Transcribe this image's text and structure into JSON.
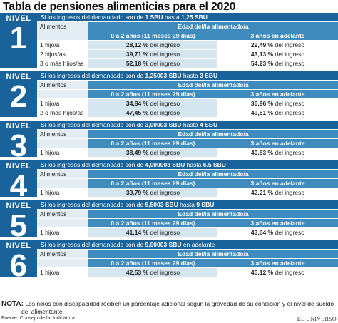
{
  "title": "Tabla de pensiones alimenticias para el 2020",
  "nivel_word": "NIVEL",
  "labels": {
    "alimentos": "Alimentos",
    "edad": "Edad del/la alimentado/a",
    "age_young": "0 a 2 años (11 meses 29 días)",
    "age_old": "3 años en adelante",
    "del_ingreso": "del ingreso"
  },
  "levels": [
    {
      "num": "1",
      "cond_prefix": "Si los ingresos del demandado son de ",
      "cond_from": "1 SBU",
      "cond_mid": " hasta ",
      "cond_to": "1,25 SBU",
      "rows": [
        {
          "label": "1 hijo/a",
          "young": "28,12 %",
          "old": "29,49 %"
        },
        {
          "label": "2 hijos/as",
          "young": "39,71 %",
          "old": "43,13 %"
        },
        {
          "label": "3 o más hijos/as",
          "young": "52,18 %",
          "old": "54,23 %"
        }
      ]
    },
    {
      "num": "2",
      "cond_prefix": "Si los ingresos del demandado son de ",
      "cond_from": "1,25003 SBU",
      "cond_mid": " hasta ",
      "cond_to": "3 SBU",
      "rows": [
        {
          "label": "1 hijo/a",
          "young": "34,84 %",
          "old": "36,96 %"
        },
        {
          "label": "2 o más hijos/as",
          "young": "47,45 %",
          "old": "49,51 %"
        }
      ]
    },
    {
      "num": "3",
      "cond_prefix": "Si los ingresos del demandado son de ",
      "cond_from": "3,00003 SBU",
      "cond_mid": " hasta ",
      "cond_to": "4 SBU",
      "rows": [
        {
          "label": "1 hijo/a",
          "young": "38,49 %",
          "old": "40,83 %"
        }
      ]
    },
    {
      "num": "4",
      "cond_prefix": "Si los ingresos del demandado son de ",
      "cond_from": "4,000003 SBU",
      "cond_mid": " hasta ",
      "cond_to": "6.5 SBU",
      "rows": [
        {
          "label": "1 hijo/a",
          "young": "39,79 %",
          "old": "42,21 %"
        }
      ]
    },
    {
      "num": "5",
      "cond_prefix": "Si los ingresos del demandado son de ",
      "cond_from": "6,5003 SBU",
      "cond_mid": " hasta ",
      "cond_to": "9 SBU",
      "rows": [
        {
          "label": "1 hijo/a",
          "young": "41,14 %",
          "old": "43,64 %"
        }
      ]
    },
    {
      "num": "6",
      "cond_prefix": "Si los ingresos del demandado son de ",
      "cond_from": "9,00003 SBU",
      "cond_mid": " en adelante",
      "cond_to": "",
      "rows": [
        {
          "label": "1 hijo/a",
          "young": "42,53 %",
          "old": "45,12 %"
        }
      ]
    }
  ],
  "nota": {
    "label": "NOTA:",
    "line1": "Los niños con discapacidad reciben un porcentaje adicional según la gravedad de su condición y el nivel de sueldo",
    "line2": "del alimentante."
  },
  "footer": {
    "source": "Fuente: Consejo de la Judicatura",
    "brand": "EL UNIVERSO"
  }
}
